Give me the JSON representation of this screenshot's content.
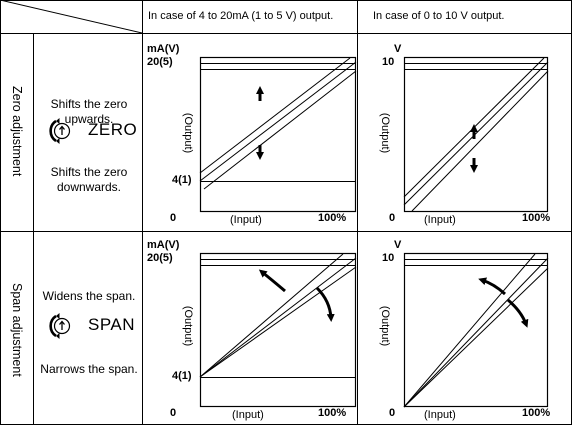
{
  "header": {
    "col1": "In case of 4 to 20mA (1 to 5 V) output.",
    "col2": "In case of 0 to 10 V output."
  },
  "rows": [
    {
      "label": "Zero adjustment",
      "up_text": "Shifts the zero upwards.",
      "down_text": "Shifts the zero downwards.",
      "knob": "ZERO"
    },
    {
      "label": "Span adjustment",
      "up_text": "Widens the span.",
      "down_text": "Narrows the span.",
      "knob": "SPAN"
    }
  ],
  "graph_a": {
    "unit": "mA(V)",
    "top_value": "20(5)",
    "low_value": "4(1)",
    "origin": "0",
    "ylabel": "(Output)",
    "xlabel": "(Input)",
    "xmax": "100%"
  },
  "graph_b": {
    "unit": "V",
    "top_value": "10",
    "origin": "0",
    "ylabel": "(Output)",
    "xlabel": "(Input)",
    "xmax": "100%"
  },
  "icons": {
    "knob": "rotary-knob-icon",
    "arrow_up": "arrow-up-icon",
    "arrow_down": "arrow-down-icon",
    "curved_ccw": "curved-arrow-ccw-icon",
    "curved_cw": "curved-arrow-cw-icon"
  }
}
